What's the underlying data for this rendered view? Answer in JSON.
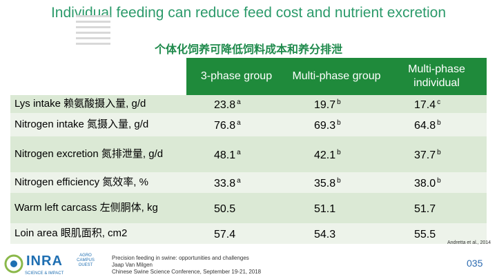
{
  "title": {
    "en": "Individual feeding can reduce feed cost and nutrient excretion",
    "zh": "个体化饲养可降低饲料成本和养分排泄"
  },
  "table": {
    "headers": [
      "3-phase group",
      "Multi-phase group",
      "Multi-phase individual"
    ],
    "rows": [
      {
        "label": "Lys intake 赖氨酸摄入量, g/d",
        "v1": "23.8",
        "s1": "a",
        "v2": "19.7",
        "s2": "b",
        "v3": "17.4",
        "s3": "c"
      },
      {
        "label": "Nitrogen intake 氮摄入量, g/d",
        "v1": "76.8",
        "s1": "a",
        "v2": "69.3",
        "s2": "b",
        "v3": "64.8",
        "s3": "b"
      },
      {
        "label": "Nitrogen excretion 氮排泄量, g/d",
        "v1": "48.1",
        "s1": "a",
        "v2": "42.1",
        "s2": "b",
        "v3": "37.7",
        "s3": "b"
      },
      {
        "label": "Nitrogen efficiency 氮效率, %",
        "v1": "33.8",
        "s1": "a",
        "v2": "35.8",
        "s2": "b",
        "v3": "38.0",
        "s3": "b"
      },
      {
        "label": "Warm left carcass 左侧胴体, kg",
        "v1": "50.5",
        "s1": "",
        "v2": "51.1",
        "s2": "",
        "v3": "51.7",
        "s3": ""
      },
      {
        "label": "Loin area 眼肌面积, cm2",
        "v1": "57.4",
        "s1": "",
        "v2": "54.3",
        "s2": "",
        "v3": "55.5",
        "s3": ""
      }
    ]
  },
  "citation": "Andretta et al., 2014",
  "footer": {
    "logo_name": "INRA",
    "logo_tag": "SCIENCE & IMPACT",
    "agro_logo": "AGRO CAMPUS OUEST",
    "line1": "Precision feeding in swine: opportunities and challenges",
    "line2": "Jaap Van Milgen",
    "line3": "Chinese Swine Science Conference, September 19-21, 2018",
    "page": "035"
  },
  "colors": {
    "title": "#2b9a6a",
    "header_bg": "#1f8a3b",
    "row_odd": "#dbe9d5",
    "row_even": "#edf3ea",
    "footer_blue": "#1f6fb2"
  }
}
